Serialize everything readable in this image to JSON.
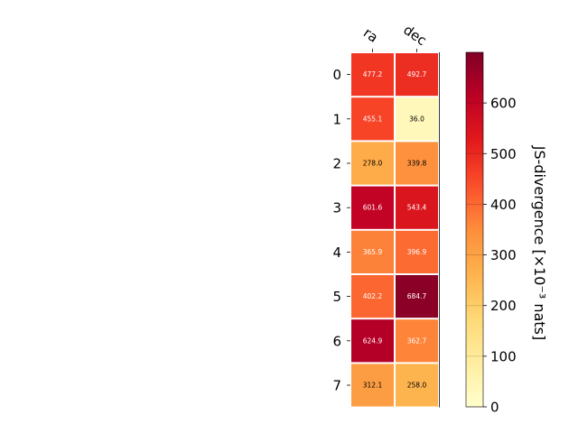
{
  "chart_data": {
    "type": "heatmap",
    "columns": [
      "ra",
      "dec"
    ],
    "rows": [
      "0",
      "1",
      "2",
      "3",
      "4",
      "5",
      "6",
      "7"
    ],
    "values": [
      [
        477.2,
        492.7
      ],
      [
        455.1,
        36.0
      ],
      [
        278.0,
        339.8
      ],
      [
        601.6,
        543.4
      ],
      [
        365.9,
        396.9
      ],
      [
        402.2,
        684.7
      ],
      [
        624.9,
        362.7
      ],
      [
        312.1,
        258.0
      ]
    ],
    "value_labels": [
      [
        "477.2",
        "492.7"
      ],
      [
        "455.1",
        "36.0"
      ],
      [
        "278.0",
        "339.8"
      ],
      [
        "601.6",
        "543.4"
      ],
      [
        "365.9",
        "396.9"
      ],
      [
        "402.2",
        "684.7"
      ],
      [
        "624.9",
        "362.7"
      ],
      [
        "312.1",
        "258.0"
      ]
    ],
    "colorbar": {
      "label": "JS-divergence [×10⁻³ nats]",
      "range": [
        0,
        700
      ],
      "ticks": [
        "0",
        "100",
        "200",
        "300",
        "400",
        "500",
        "600"
      ],
      "colormap": "YlOrRd"
    },
    "grid": false
  }
}
